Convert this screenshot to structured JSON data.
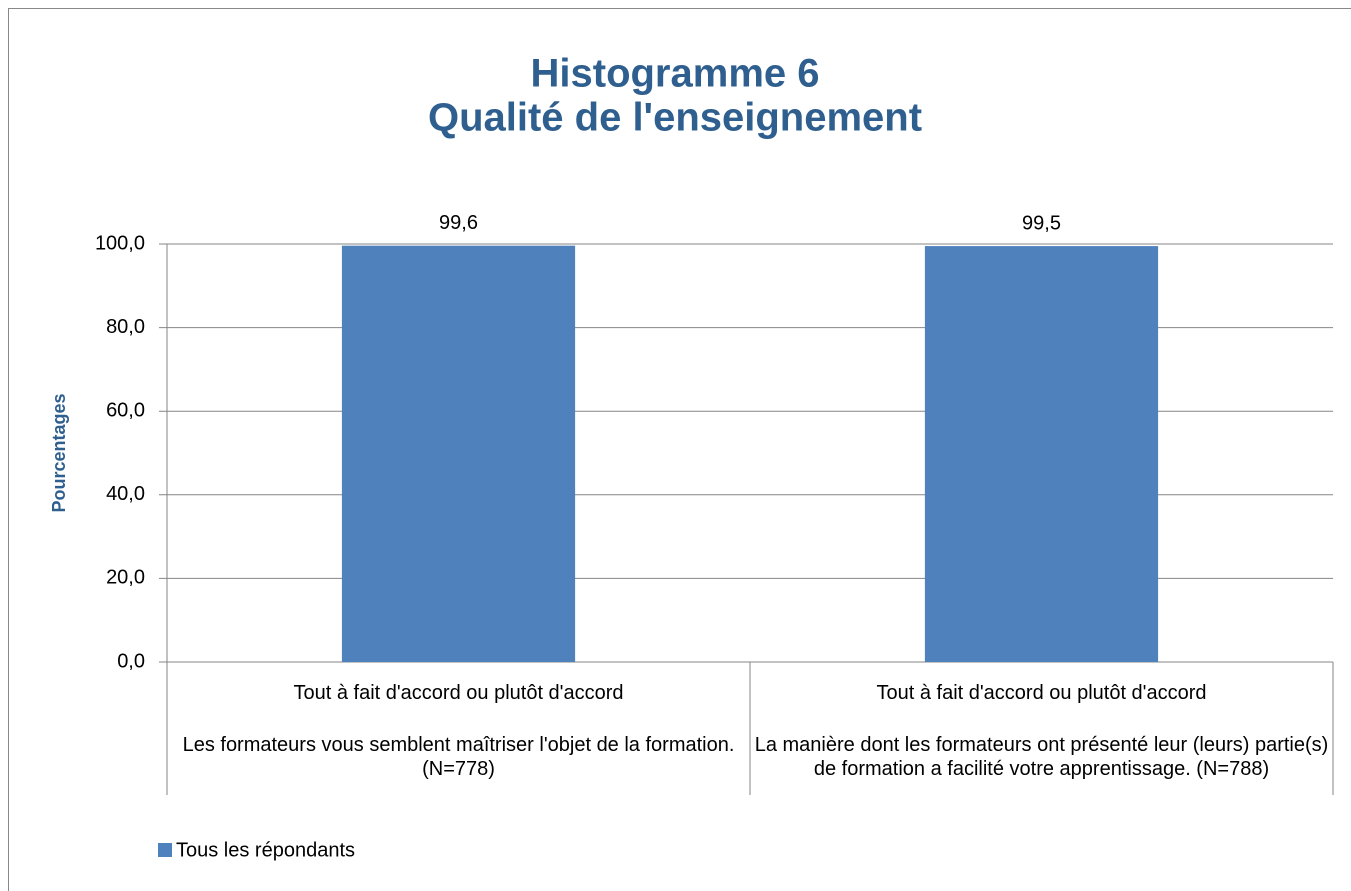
{
  "chart_data": {
    "type": "bar",
    "title": "Histogramme 6",
    "subtitle": "Qualité de l'enseignement",
    "ylabel": "Pourcentages",
    "categories": [
      "Tout à fait d'accord ou plutôt d'accord",
      "Tout à fait d'accord ou plutôt d'accord"
    ],
    "groups": [
      "Les formateurs vous semblent maîtriser l'objet de la formation.(N=778)",
      "La manière dont les formateurs ont présenté leur (leurs) partie(s) de formation a facilité votre apprentissage. (N=788)"
    ],
    "series": [
      {
        "name": "Tous les répondants",
        "color": "#4f81bd",
        "values": [
          99.6,
          99.5
        ],
        "value_labels": [
          "99,6",
          "99,5"
        ]
      }
    ],
    "ylim": [
      0,
      100
    ],
    "yticks": [
      {
        "value": 0,
        "label": "0,0"
      },
      {
        "value": 20,
        "label": "20,0"
      },
      {
        "value": 40,
        "label": "40,0"
      },
      {
        "value": 60,
        "label": "60,0"
      },
      {
        "value": 80,
        "label": "80,0"
      },
      {
        "value": 100,
        "label": "100,0"
      }
    ],
    "grid": true,
    "legend": "bottom-left"
  }
}
